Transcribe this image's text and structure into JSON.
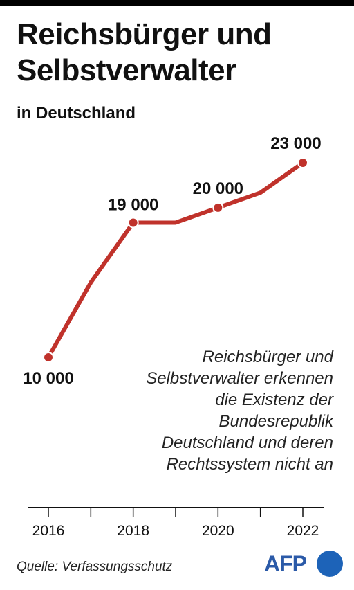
{
  "header": {
    "title": "Reichsbürger und Selbstverwalter",
    "subtitle": "in Deutschland"
  },
  "note": "Reichsbürger und Selbstverwalter erkennen die Existenz der Bundesrepublik Deutschland und deren Rechtssystem nicht an",
  "source": "Quelle: Verfassungsschutz",
  "logo": {
    "text": "AFP",
    "icon": "afp-logo-dot"
  },
  "colors": {
    "line": "#c0322b",
    "axis": "#111111"
  },
  "chart_data": {
    "type": "line",
    "title": "Reichsbürger und Selbstverwalter",
    "subtitle": "in Deutschland",
    "x": [
      2016,
      2017,
      2018,
      2019,
      2020,
      2021,
      2022
    ],
    "series": [
      {
        "values": [
          10000,
          15000,
          19000,
          19000,
          20000,
          21000,
          23000
        ]
      }
    ],
    "point_labels": [
      {
        "x": 2016,
        "label": "10 000"
      },
      {
        "x": 2018,
        "label": "19 000"
      },
      {
        "x": 2020,
        "label": "20 000"
      },
      {
        "x": 2022,
        "label": "23 000"
      }
    ],
    "x_tick_labels": [
      "2016",
      "2018",
      "2020",
      "2022"
    ],
    "ylim": [
      10000,
      23000
    ],
    "grid": false
  }
}
